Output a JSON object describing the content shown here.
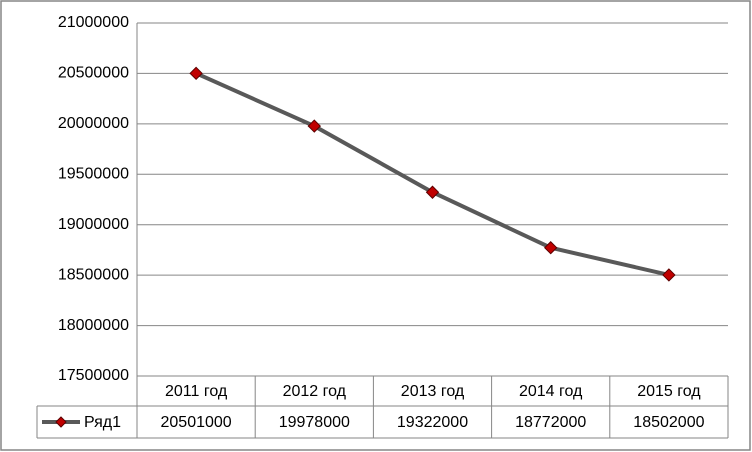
{
  "chart_data": {
    "type": "line",
    "categories": [
      "2011 год",
      "2012 год",
      "2013 год",
      "2014 год",
      "2015 год"
    ],
    "series": [
      {
        "name": "Ряд1",
        "color": "#595959",
        "marker_color": "#c00000",
        "values": [
          20501000,
          19978000,
          19322000,
          18772000,
          18502000
        ]
      }
    ],
    "ylim": [
      17500000,
      21000000
    ],
    "yticks": [
      17500000,
      18000000,
      18500000,
      19000000,
      19500000,
      20000000,
      20500000,
      21000000
    ],
    "grid": true
  }
}
